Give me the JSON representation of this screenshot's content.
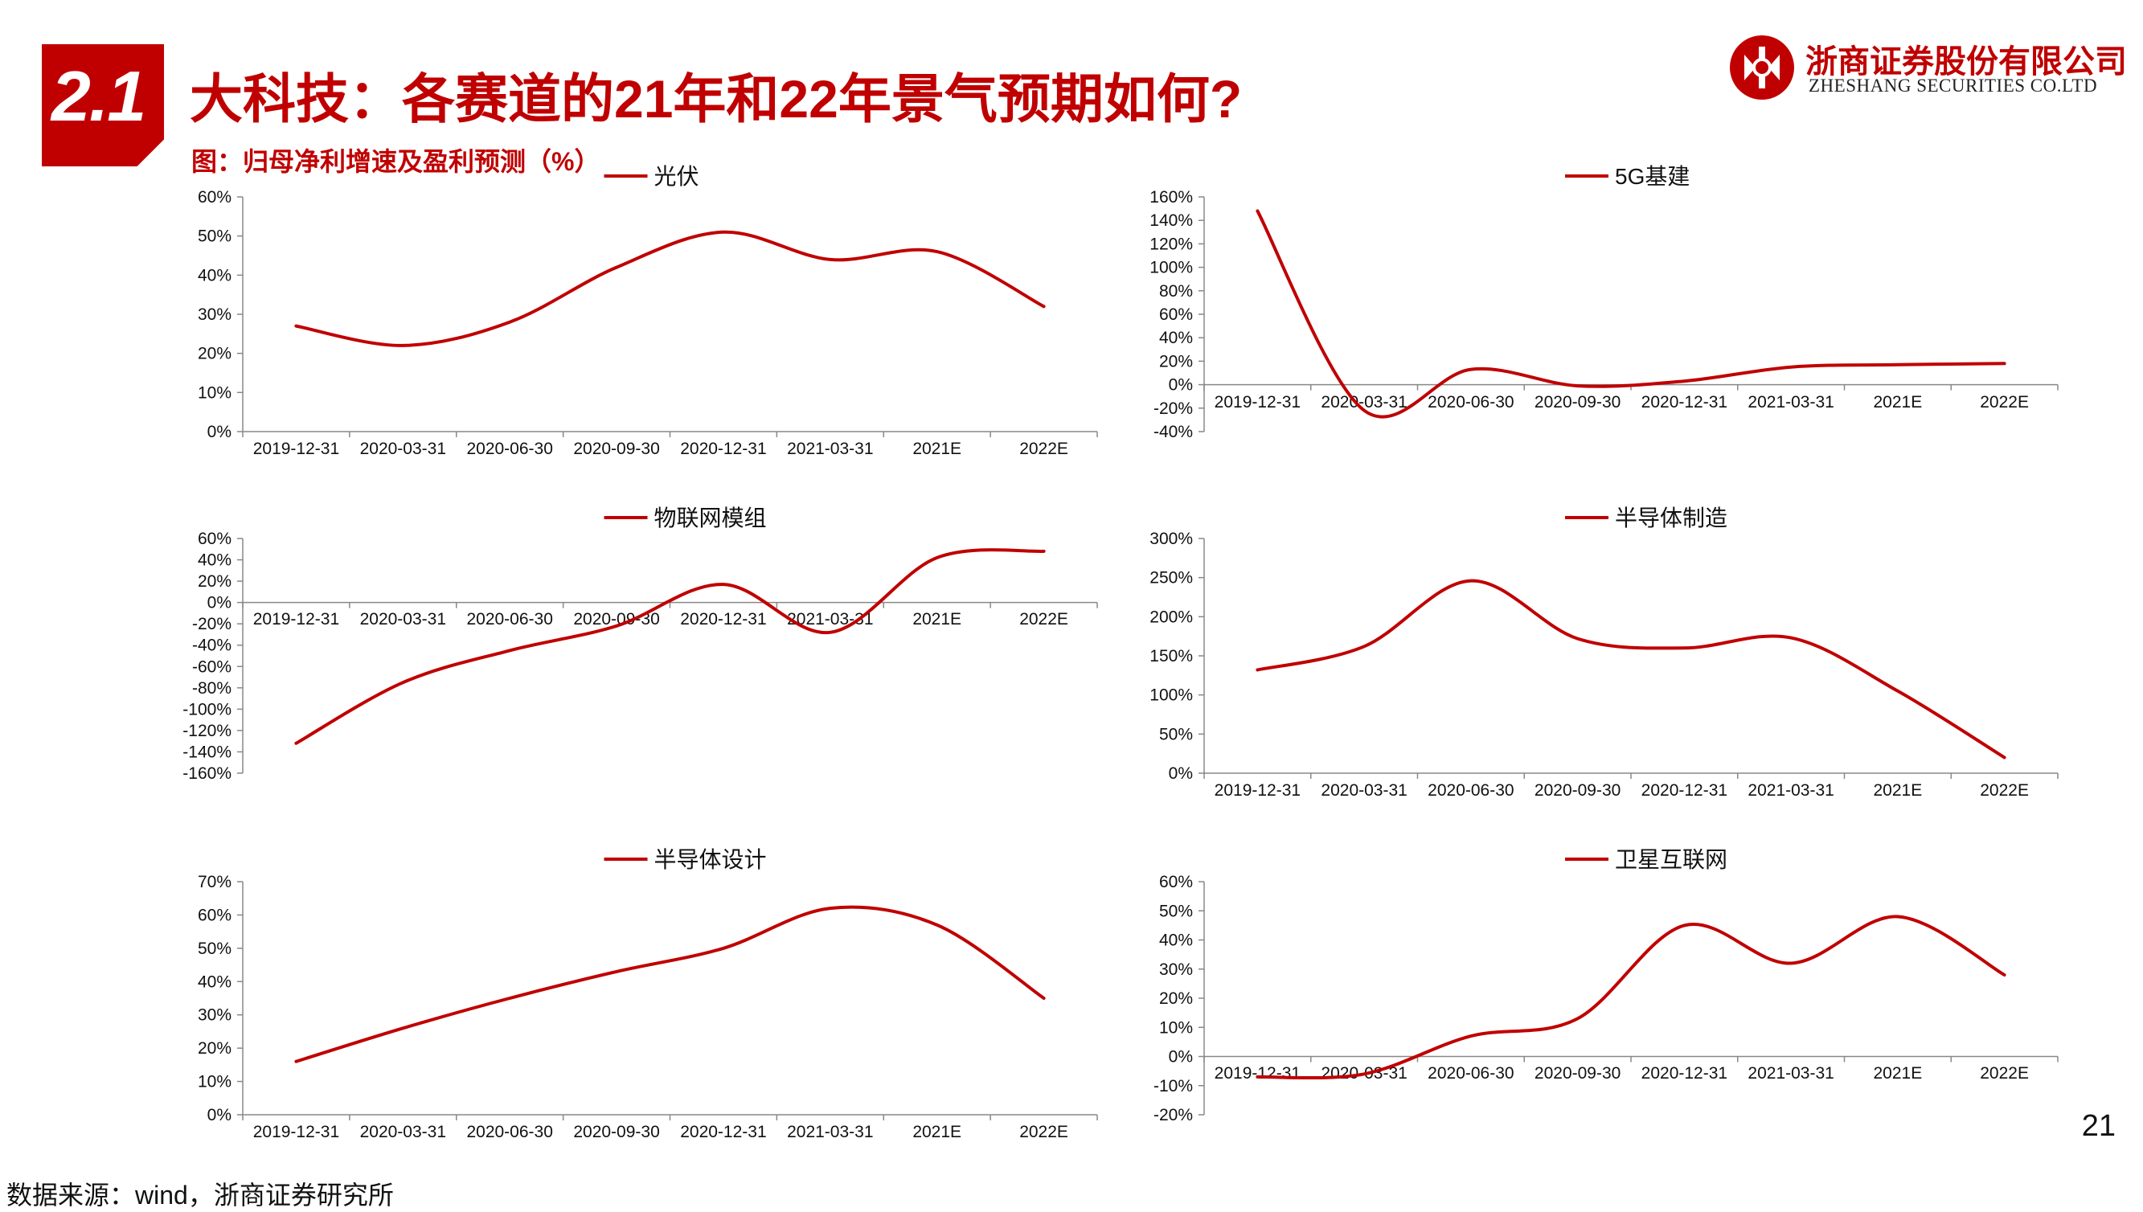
{
  "header": {
    "section_number": "2.1",
    "title": "大科技：各赛道的21年和22年景气预期如何?",
    "subtitle": "图：归母净利增速及盈利预测（%）"
  },
  "logo": {
    "name_cn": "浙商证券股份有限公司",
    "name_en": "ZHESHANG SECURITIES CO.LTD"
  },
  "footer": {
    "source": "数据来源：wind，浙商证券研究所",
    "page_number": "21"
  },
  "colors": {
    "accent": "#c00000",
    "line": "#c00000",
    "axis": "#888888"
  },
  "chart_data": [
    {
      "type": "line",
      "legend_position": "top",
      "categories": [
        "2019-12-31",
        "2020-03-31",
        "2020-06-30",
        "2020-09-30",
        "2020-12-31",
        "2021-03-31",
        "2021E",
        "2022E"
      ],
      "series": [
        {
          "name": "光伏",
          "values": [
            27,
            22,
            28,
            42,
            51,
            44,
            46,
            32
          ]
        }
      ],
      "yticks": [
        0,
        10,
        20,
        30,
        40,
        50,
        60
      ],
      "ytick_labels": [
        "0%",
        "10%",
        "20%",
        "30%",
        "40%",
        "50%",
        "60%"
      ],
      "ylim": [
        0,
        60
      ],
      "grid": false
    },
    {
      "type": "line",
      "legend_position": "top",
      "categories": [
        "2019-12-31",
        "2020-03-31",
        "2020-06-30",
        "2020-09-30",
        "2020-12-31",
        "2021-03-31",
        "2021E",
        "2022E"
      ],
      "series": [
        {
          "name": "5G基建",
          "values": [
            148,
            -22,
            13,
            -1,
            3,
            15,
            17,
            18
          ]
        }
      ],
      "yticks": [
        -40,
        -20,
        0,
        20,
        40,
        60,
        80,
        100,
        120,
        140,
        160
      ],
      "ytick_labels": [
        "-40%",
        "-20%",
        "0%",
        "20%",
        "40%",
        "60%",
        "80%",
        "100%",
        "120%",
        "140%",
        "160%"
      ],
      "ylim": [
        -40,
        160
      ],
      "grid": false
    },
    {
      "type": "line",
      "legend_position": "top",
      "categories": [
        "2019-12-31",
        "2020-03-31",
        "2020-06-30",
        "2020-09-30",
        "2020-12-31",
        "2021-03-31",
        "2021E",
        "2022E"
      ],
      "series": [
        {
          "name": "物联网模组",
          "values": [
            -132,
            -75,
            -45,
            -22,
            17,
            -28,
            42,
            48
          ]
        }
      ],
      "yticks": [
        -160,
        -140,
        -120,
        -100,
        -80,
        -60,
        -40,
        -20,
        0,
        20,
        40,
        60
      ],
      "ytick_labels": [
        "-160%",
        "-140%",
        "-120%",
        "-100%",
        "-80%",
        "-60%",
        "-40%",
        "-20%",
        "0%",
        "20%",
        "40%",
        "60%"
      ],
      "ylim": [
        -160,
        60
      ],
      "grid": false
    },
    {
      "type": "line",
      "legend_position": "top",
      "categories": [
        "2019-12-31",
        "2020-03-31",
        "2020-06-30",
        "2020-09-30",
        "2020-12-31",
        "2021-03-31",
        "2021E",
        "2022E"
      ],
      "series": [
        {
          "name": "半导体制造",
          "values": [
            132,
            162,
            246,
            172,
            160,
            173,
            105,
            20
          ]
        }
      ],
      "yticks": [
        0,
        50,
        100,
        150,
        200,
        250,
        300
      ],
      "ytick_labels": [
        "0%",
        "50%",
        "100%",
        "150%",
        "200%",
        "250%",
        "300%"
      ],
      "ylim": [
        0,
        300
      ],
      "grid": false
    },
    {
      "type": "line",
      "legend_position": "top",
      "categories": [
        "2019-12-31",
        "2020-03-31",
        "2020-06-30",
        "2020-09-30",
        "2020-12-31",
        "2021-03-31",
        "2021E",
        "2022E"
      ],
      "series": [
        {
          "name": "半导体设计",
          "values": [
            16,
            26,
            35,
            43,
            50,
            62,
            57,
            35
          ]
        }
      ],
      "yticks": [
        0,
        10,
        20,
        30,
        40,
        50,
        60,
        70
      ],
      "ytick_labels": [
        "0%",
        "10%",
        "20%",
        "30%",
        "40%",
        "50%",
        "60%",
        "70%"
      ],
      "ylim": [
        0,
        70
      ],
      "grid": false
    },
    {
      "type": "line",
      "legend_position": "top",
      "categories": [
        "2019-12-31",
        "2020-03-31",
        "2020-06-30",
        "2020-09-30",
        "2020-12-31",
        "2021-03-31",
        "2021E",
        "2022E"
      ],
      "series": [
        {
          "name": "卫星互联网",
          "values": [
            -7,
            -6,
            7,
            13,
            45,
            32,
            48,
            28
          ]
        }
      ],
      "yticks": [
        -20,
        -10,
        0,
        10,
        20,
        30,
        40,
        50,
        60
      ],
      "ytick_labels": [
        "-20%",
        "-10%",
        "0%",
        "10%",
        "20%",
        "30%",
        "40%",
        "50%",
        "60%"
      ],
      "ylim": [
        -20,
        60
      ],
      "grid": false
    }
  ]
}
